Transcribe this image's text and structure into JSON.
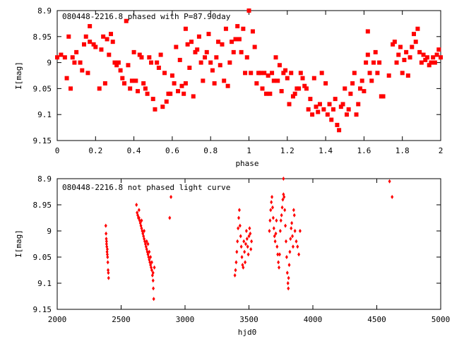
{
  "chart_data": [
    {
      "type": "scatter",
      "title": "080448-2216.8 phased with P=87.90day",
      "xlabel": "phase",
      "ylabel": "I[mag]",
      "xlim": [
        0,
        2
      ],
      "ylim": [
        8.9,
        9.15
      ],
      "y_inverted": true,
      "x_ticks": [
        "0",
        "0.2",
        "0.4",
        "0.6",
        "0.8",
        "1",
        "1.2",
        "1.4",
        "1.6",
        "1.8",
        "2"
      ],
      "y_ticks": [
        "8.9",
        "8.95",
        "9",
        "9.05",
        "9.1",
        "9.15"
      ],
      "grid": false,
      "marker": "filled-square",
      "color": "#ff0000",
      "points": [
        [
          0.0,
          8.99
        ],
        [
          0.02,
          8.985
        ],
        [
          0.04,
          8.99
        ],
        [
          0.05,
          9.03
        ],
        [
          0.06,
          8.95
        ],
        [
          0.07,
          9.05
        ],
        [
          0.08,
          8.99
        ],
        [
          0.09,
          9.0
        ],
        [
          0.1,
          8.98
        ],
        [
          0.12,
          9.0
        ],
        [
          0.13,
          9.015
        ],
        [
          0.14,
          8.965
        ],
        [
          0.15,
          8.95
        ],
        [
          0.16,
          9.02
        ],
        [
          0.17,
          8.96
        ],
        [
          0.17,
          8.93
        ],
        [
          0.19,
          8.965
        ],
        [
          0.2,
          8.97
        ],
        [
          0.22,
          9.05
        ],
        [
          0.23,
          8.975
        ],
        [
          0.24,
          8.95
        ],
        [
          0.25,
          9.04
        ],
        [
          0.26,
          8.955
        ],
        [
          0.27,
          8.985
        ],
        [
          0.28,
          8.945
        ],
        [
          0.29,
          8.96
        ],
        [
          0.3,
          9.0
        ],
        [
          0.31,
          9.005
        ],
        [
          0.32,
          9.0
        ],
        [
          0.33,
          9.015
        ],
        [
          0.34,
          9.03
        ],
        [
          0.35,
          9.04
        ],
        [
          0.36,
          8.92
        ],
        [
          0.37,
          9.005
        ],
        [
          0.38,
          9.05
        ],
        [
          0.39,
          9.035
        ],
        [
          0.4,
          8.98
        ],
        [
          0.41,
          9.035
        ],
        [
          0.42,
          9.055
        ],
        [
          0.43,
          8.985
        ],
        [
          0.44,
          8.99
        ],
        [
          0.45,
          9.04
        ],
        [
          0.46,
          9.05
        ],
        [
          0.47,
          9.06
        ],
        [
          0.48,
          8.99
        ],
        [
          0.49,
          9.0
        ],
        [
          0.5,
          9.07
        ],
        [
          0.51,
          9.09
        ],
        [
          0.52,
          9.0
        ],
        [
          0.53,
          9.01
        ],
        [
          0.54,
          8.985
        ],
        [
          0.55,
          9.085
        ],
        [
          0.56,
          9.02
        ],
        [
          0.57,
          9.075
        ],
        [
          0.58,
          9.06
        ],
        [
          0.59,
          9.06
        ],
        [
          0.6,
          9.025
        ],
        [
          0.61,
          9.04
        ],
        [
          0.62,
          8.97
        ],
        [
          0.63,
          9.055
        ],
        [
          0.64,
          8.995
        ],
        [
          0.65,
          9.045
        ],
        [
          0.66,
          9.06
        ],
        [
          0.67,
          8.935
        ],
        [
          0.67,
          9.04
        ],
        [
          0.68,
          8.965
        ],
        [
          0.69,
          9.01
        ],
        [
          0.7,
          8.96
        ],
        [
          0.71,
          9.065
        ],
        [
          0.72,
          8.98
        ],
        [
          0.73,
          8.975
        ],
        [
          0.74,
          8.95
        ],
        [
          0.75,
          9.0
        ],
        [
          0.76,
          9.035
        ],
        [
          0.77,
          8.99
        ],
        [
          0.78,
          8.98
        ],
        [
          0.79,
          8.945
        ],
        [
          0.8,
          9.0
        ],
        [
          0.81,
          9.015
        ],
        [
          0.82,
          9.04
        ],
        [
          0.83,
          8.99
        ],
        [
          0.84,
          8.96
        ],
        [
          0.85,
          9.005
        ],
        [
          0.86,
          8.965
        ],
        [
          0.87,
          9.035
        ],
        [
          0.88,
          8.935
        ],
        [
          0.89,
          9.045
        ],
        [
          0.9,
          9.0
        ],
        [
          0.91,
          8.96
        ],
        [
          0.92,
          8.98
        ],
        [
          0.93,
          8.955
        ],
        [
          0.94,
          8.93
        ],
        [
          0.95,
          8.955
        ],
        [
          0.96,
          8.98
        ],
        [
          0.97,
          8.935
        ],
        [
          0.98,
          9.02
        ],
        [
          0.99,
          8.99
        ],
        [
          1.0,
          8.9
        ],
        [
          1.01,
          9.02
        ],
        [
          1.02,
          8.94
        ],
        [
          1.03,
          8.97
        ],
        [
          1.04,
          9.04
        ],
        [
          1.05,
          9.02
        ],
        [
          1.06,
          9.02
        ],
        [
          1.07,
          9.05
        ],
        [
          1.08,
          9.02
        ],
        [
          1.09,
          9.06
        ],
        [
          1.1,
          9.025
        ],
        [
          1.11,
          9.06
        ],
        [
          1.12,
          9.02
        ],
        [
          1.13,
          9.035
        ],
        [
          1.14,
          8.99
        ],
        [
          1.15,
          9.035
        ],
        [
          1.16,
          9.005
        ],
        [
          1.17,
          9.055
        ],
        [
          1.18,
          9.02
        ],
        [
          1.19,
          9.015
        ],
        [
          1.2,
          9.03
        ],
        [
          1.21,
          9.08
        ],
        [
          1.22,
          9.02
        ],
        [
          1.23,
          9.065
        ],
        [
          1.24,
          9.06
        ],
        [
          1.25,
          9.05
        ],
        [
          1.26,
          9.05
        ],
        [
          1.27,
          9.02
        ],
        [
          1.28,
          9.03
        ],
        [
          1.29,
          9.045
        ],
        [
          1.3,
          9.05
        ],
        [
          1.31,
          9.09
        ],
        [
          1.32,
          9.07
        ],
        [
          1.33,
          9.1
        ],
        [
          1.34,
          9.03
        ],
        [
          1.35,
          9.085
        ],
        [
          1.36,
          9.095
        ],
        [
          1.37,
          9.08
        ],
        [
          1.38,
          9.02
        ],
        [
          1.39,
          9.09
        ],
        [
          1.4,
          9.04
        ],
        [
          1.41,
          9.1
        ],
        [
          1.42,
          9.08
        ],
        [
          1.43,
          9.11
        ],
        [
          1.44,
          9.09
        ],
        [
          1.45,
          9.07
        ],
        [
          1.46,
          9.12
        ],
        [
          1.47,
          9.13
        ],
        [
          1.48,
          9.085
        ],
        [
          1.49,
          9.08
        ],
        [
          1.5,
          9.05
        ],
        [
          1.51,
          9.1
        ],
        [
          1.52,
          9.09
        ],
        [
          1.53,
          9.06
        ],
        [
          1.54,
          9.04
        ],
        [
          1.55,
          9.02
        ],
        [
          1.56,
          9.1
        ],
        [
          1.57,
          9.08
        ],
        [
          1.58,
          9.05
        ],
        [
          1.59,
          9.035
        ],
        [
          1.6,
          9.055
        ],
        [
          1.61,
          9.0
        ],
        [
          1.62,
          8.94
        ],
        [
          1.62,
          8.985
        ],
        [
          1.63,
          9.02
        ],
        [
          1.64,
          9.035
        ],
        [
          1.65,
          9.0
        ],
        [
          1.66,
          8.98
        ],
        [
          1.67,
          9.02
        ],
        [
          1.68,
          9.0
        ],
        [
          1.69,
          9.065
        ],
        [
          1.7,
          9.065
        ],
        [
          1.73,
          9.025
        ],
        [
          1.75,
          8.965
        ],
        [
          1.76,
          8.96
        ],
        [
          1.77,
          9.0
        ],
        [
          1.78,
          8.985
        ],
        [
          1.79,
          8.97
        ],
        [
          1.8,
          9.02
        ],
        [
          1.81,
          8.995
        ],
        [
          1.82,
          8.98
        ],
        [
          1.83,
          9.025
        ],
        [
          1.84,
          8.99
        ],
        [
          1.85,
          8.97
        ],
        [
          1.86,
          8.945
        ],
        [
          1.87,
          8.96
        ],
        [
          1.88,
          8.935
        ],
        [
          1.89,
          8.98
        ],
        [
          1.9,
          9.0
        ],
        [
          1.91,
          8.985
        ],
        [
          1.92,
          8.995
        ],
        [
          1.93,
          8.99
        ],
        [
          1.94,
          9.005
        ],
        [
          1.95,
          9.0
        ],
        [
          1.96,
          8.99
        ],
        [
          1.97,
          9.0
        ],
        [
          1.98,
          8.985
        ],
        [
          1.99,
          8.975
        ],
        [
          2.0,
          8.99
        ]
      ]
    },
    {
      "type": "scatter",
      "title": "080448-2216.8 not phased light curve",
      "xlabel": "hjd0",
      "ylabel": "I[mag]",
      "xlim": [
        2000,
        5000
      ],
      "ylim": [
        8.9,
        9.15
      ],
      "y_inverted": true,
      "x_ticks": [
        "2000",
        "2500",
        "3000",
        "3500",
        "4000",
        "4500",
        "5000"
      ],
      "y_ticks": [
        "8.9",
        "8.95",
        "9",
        "9.05",
        "9.1",
        "9.15"
      ],
      "grid": false,
      "marker": "filled-diamond",
      "color": "#ff0000",
      "points": [
        [
          2380,
          8.99
        ],
        [
          2382,
          9.005
        ],
        [
          2384,
          9.015
        ],
        [
          2386,
          9.025
        ],
        [
          2388,
          9.03
        ],
        [
          2390,
          9.04
        ],
        [
          2392,
          9.045
        ],
        [
          2394,
          9.05
        ],
        [
          2396,
          9.06
        ],
        [
          2398,
          9.075
        ],
        [
          2400,
          9.08
        ],
        [
          2402,
          9.09
        ],
        [
          2386,
          9.02
        ],
        [
          2392,
          9.035
        ],
        [
          2620,
          8.95
        ],
        [
          2625,
          8.965
        ],
        [
          2630,
          8.97
        ],
        [
          2635,
          8.975
        ],
        [
          2640,
          8.975
        ],
        [
          2645,
          8.98
        ],
        [
          2650,
          8.985
        ],
        [
          2655,
          8.99
        ],
        [
          2660,
          8.995
        ],
        [
          2665,
          9.0
        ],
        [
          2670,
          9.005
        ],
        [
          2675,
          9.01
        ],
        [
          2680,
          9.015
        ],
        [
          2685,
          9.02
        ],
        [
          2690,
          9.025
        ],
        [
          2695,
          9.03
        ],
        [
          2700,
          9.035
        ],
        [
          2705,
          9.04
        ],
        [
          2710,
          9.045
        ],
        [
          2715,
          9.05
        ],
        [
          2720,
          9.055
        ],
        [
          2725,
          9.06
        ],
        [
          2730,
          9.065
        ],
        [
          2735,
          9.07
        ],
        [
          2740,
          9.075
        ],
        [
          2745,
          9.085
        ],
        [
          2750,
          9.095
        ],
        [
          2752,
          9.11
        ],
        [
          2755,
          9.13
        ],
        [
          2640,
          8.96
        ],
        [
          2660,
          8.98
        ],
        [
          2680,
          9.0
        ],
        [
          2700,
          9.02
        ],
        [
          2720,
          9.04
        ],
        [
          2740,
          9.06
        ],
        [
          2760,
          9.07
        ],
        [
          2710,
          9.025
        ],
        [
          2730,
          9.05
        ],
        [
          2750,
          9.08
        ],
        [
          2880,
          8.975
        ],
        [
          2890,
          8.935
        ],
        [
          3390,
          9.085
        ],
        [
          3395,
          9.075
        ],
        [
          3400,
          9.06
        ],
        [
          3405,
          9.04
        ],
        [
          3410,
          9.02
        ],
        [
          3415,
          8.995
        ],
        [
          3420,
          8.975
        ],
        [
          3425,
          8.96
        ],
        [
          3430,
          8.99
        ],
        [
          3435,
          9.01
        ],
        [
          3440,
          9.03
        ],
        [
          3445,
          9.05
        ],
        [
          3450,
          9.065
        ],
        [
          3455,
          9.07
        ],
        [
          3460,
          9.02
        ],
        [
          3465,
          9.04
        ],
        [
          3470,
          9.06
        ],
        [
          3475,
          9.025
        ],
        [
          3480,
          9.0
        ],
        [
          3485,
          9.015
        ],
        [
          3490,
          9.03
        ],
        [
          3495,
          9.045
        ],
        [
          3500,
          9.01
        ],
        [
          3505,
          8.995
        ],
        [
          3510,
          9.005
        ],
        [
          3515,
          9.035
        ],
        [
          3520,
          9.02
        ],
        [
          3660,
          9.0
        ],
        [
          3665,
          8.98
        ],
        [
          3670,
          8.96
        ],
        [
          3675,
          8.945
        ],
        [
          3680,
          8.935
        ],
        [
          3685,
          8.955
        ],
        [
          3690,
          8.975
        ],
        [
          3695,
          8.995
        ],
        [
          3700,
          9.01
        ],
        [
          3705,
          9.02
        ],
        [
          3710,
          9.005
        ],
        [
          3715,
          8.98
        ],
        [
          3720,
          9.03
        ],
        [
          3725,
          9.045
        ],
        [
          3730,
          9.06
        ],
        [
          3735,
          9.07
        ],
        [
          3740,
          9.045
        ],
        [
          3745,
          9.0
        ],
        [
          3750,
          8.98
        ],
        [
          3755,
          8.97
        ],
        [
          3760,
          8.955
        ],
        [
          3765,
          8.94
        ],
        [
          3770,
          8.93
        ],
        [
          3775,
          8.935
        ],
        [
          3780,
          8.96
        ],
        [
          3785,
          8.99
        ],
        [
          3790,
          9.02
        ],
        [
          3795,
          9.05
        ],
        [
          3800,
          9.08
        ],
        [
          3805,
          9.1
        ],
        [
          3808,
          9.11
        ],
        [
          3810,
          9.09
        ],
        [
          3815,
          9.065
        ],
        [
          3820,
          9.04
        ],
        [
          3825,
          9.015
        ],
        [
          3830,
          8.995
        ],
        [
          3835,
          8.985
        ],
        [
          3840,
          9.01
        ],
        [
          3845,
          9.03
        ],
        [
          3850,
          8.96
        ],
        [
          3855,
          8.97
        ],
        [
          3860,
          9.0
        ],
        [
          3870,
          9.02
        ],
        [
          3880,
          9.03
        ],
        [
          3890,
          9.045
        ],
        [
          3900,
          9.0
        ],
        [
          3770,
          8.9
        ],
        [
          4600,
          8.905
        ],
        [
          4620,
          8.935
        ]
      ]
    }
  ]
}
